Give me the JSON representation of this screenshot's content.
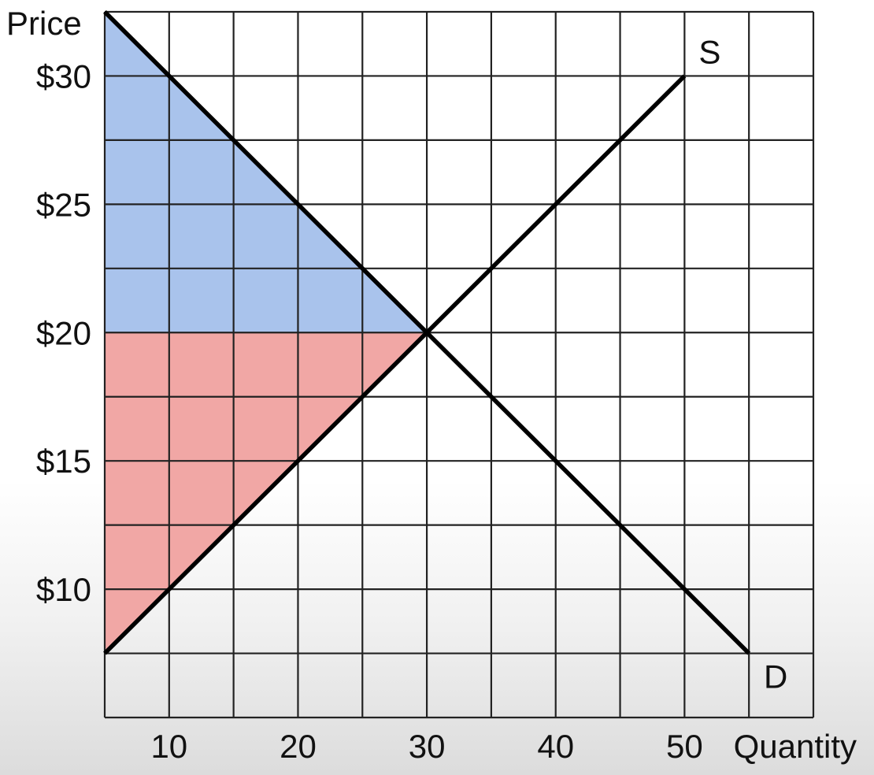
{
  "chart_data": {
    "type": "line",
    "title": "",
    "xlabel": "Quantity",
    "ylabel": "Price",
    "xlim": [
      5,
      60
    ],
    "ylim": [
      5,
      32.5
    ],
    "grid": true,
    "x_ticks": [
      10,
      20,
      30,
      40,
      50
    ],
    "x_tick_labels": [
      "10",
      "20",
      "30",
      "40",
      "50"
    ],
    "y_ticks": [
      10,
      15,
      20,
      25,
      30
    ],
    "y_tick_labels": [
      "$10",
      "$15",
      "$20",
      "$25",
      "$30"
    ],
    "series": [
      {
        "name": "S",
        "x": [
          5,
          50
        ],
        "y": [
          7.5,
          30
        ],
        "color": "#000000"
      },
      {
        "name": "D",
        "x": [
          5,
          55
        ],
        "y": [
          32.5,
          7.5
        ],
        "color": "#000000"
      }
    ],
    "equilibrium": {
      "quantity": 30,
      "price": 20
    },
    "shaded_regions": [
      {
        "name": "consumer-surplus",
        "color": "#a9c3ec",
        "points": [
          [
            5,
            32.5
          ],
          [
            5,
            20
          ],
          [
            30,
            20
          ]
        ]
      },
      {
        "name": "producer-surplus",
        "color": "#f1a7a5",
        "points": [
          [
            5,
            20
          ],
          [
            5,
            7.5
          ],
          [
            30,
            20
          ]
        ]
      }
    ]
  }
}
